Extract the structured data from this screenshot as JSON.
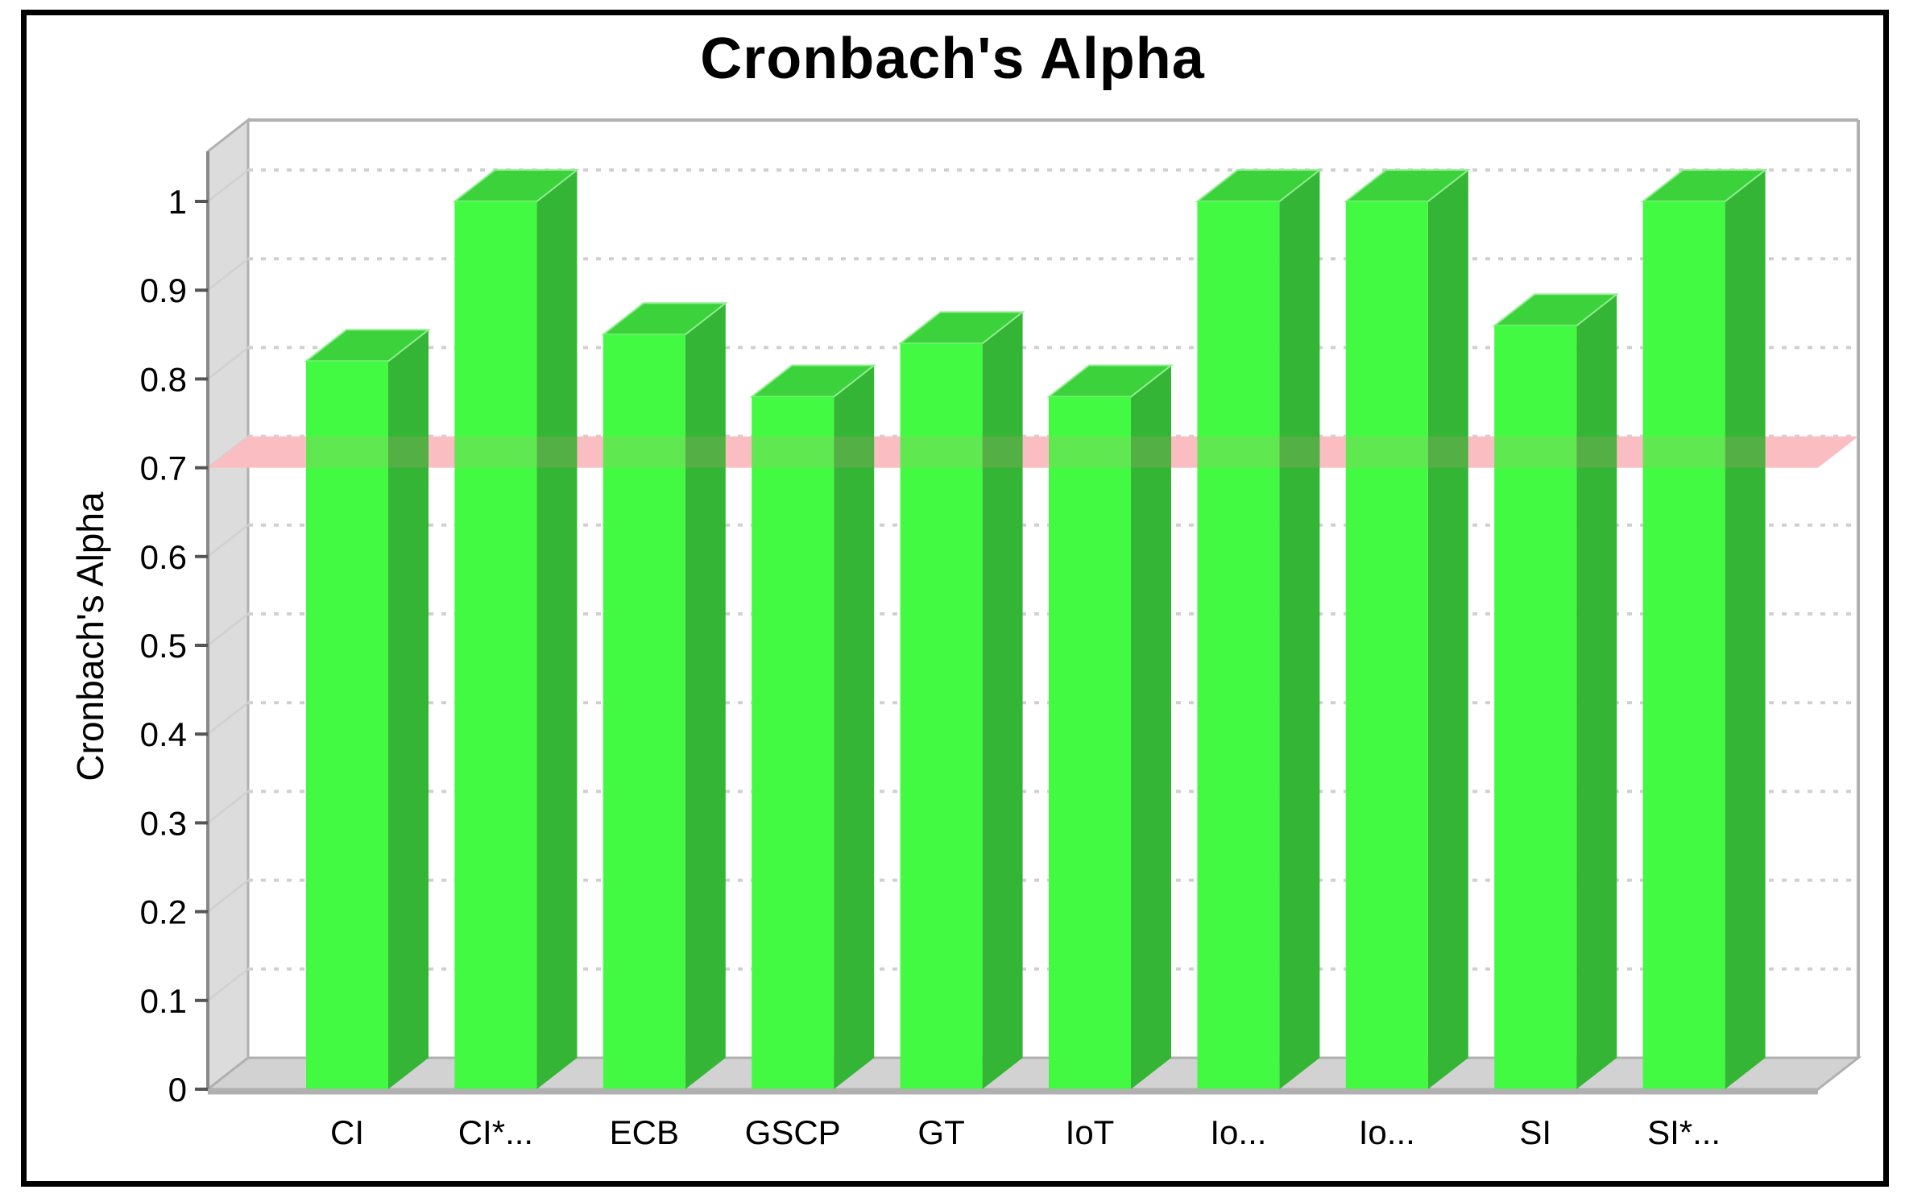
{
  "chart_data": {
    "type": "bar",
    "title": "Cronbach's Alpha",
    "ylabel": "Cronbach's Alpha",
    "xlabel": "",
    "categories": [
      "CI",
      "CI*...",
      "ECB",
      "GSCP",
      "GT",
      "IoT",
      "Io...",
      "Io...",
      "SI",
      "SI*..."
    ],
    "values": [
      0.82,
      1.0,
      0.85,
      0.78,
      0.84,
      0.78,
      1.0,
      1.0,
      0.86,
      1.0
    ],
    "yticks": [
      0,
      0.1,
      0.2,
      0.3,
      0.4,
      0.5,
      0.6,
      0.7,
      0.8,
      0.9,
      1
    ],
    "ylim": [
      0,
      1.05
    ],
    "threshold_marker": 0.7,
    "grid": "horizontal-dotted",
    "legend": "none",
    "style": "3d-bars",
    "colors": {
      "bar_front": "#43fa43",
      "bar_top": "#3bd23b",
      "bar_side": "#35b535",
      "bar_top_edge": "#90ee90",
      "threshold_band": "#fbc6c9",
      "threshold_band_overlay": "rgba(248,145,155,0.16)",
      "wall": "#dcdcdc",
      "floor": "#d2d2d2",
      "grid_line": "#d0d0d0",
      "edge_line": "#b0b0b0",
      "axis_line": "#888888",
      "tick_mark": "#555555",
      "text": "#000000",
      "background": "#ffffff",
      "border": "#000000"
    }
  }
}
